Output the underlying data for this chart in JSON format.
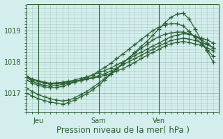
{
  "bg_color": "#d4eeed",
  "grid_color": "#9ec4b8",
  "line_color": "#2a6032",
  "marker": "+",
  "markersize": 4,
  "linewidth": 0.9,
  "xlabel": "Pression niveau de la mer( hPa )",
  "xlabel_fontsize": 8.5,
  "yticks": [
    1017,
    1018,
    1019
  ],
  "ylim": [
    1016.4,
    1019.85
  ],
  "xtick_labels": [
    "Jeu",
    "Sam",
    "Ven"
  ],
  "xtick_positions": [
    2,
    12,
    22
  ],
  "xlim": [
    0,
    32
  ],
  "vlines": [
    2,
    12,
    22
  ],
  "series": [
    [
      1017.55,
      1017.45,
      1017.4,
      1017.35,
      1017.32,
      1017.33,
      1017.35,
      1017.38,
      1017.42,
      1017.47,
      1017.52,
      1017.58,
      1017.65,
      1017.72,
      1017.8,
      1017.9,
      1018.0,
      1018.1,
      1018.2,
      1018.3,
      1018.4,
      1018.5,
      1018.6,
      1018.7,
      1018.8,
      1018.85,
      1018.9,
      1018.88,
      1018.82,
      1018.76,
      1018.7,
      1018.6
    ],
    [
      1017.52,
      1017.42,
      1017.37,
      1017.32,
      1017.29,
      1017.3,
      1017.32,
      1017.35,
      1017.38,
      1017.42,
      1017.46,
      1017.5,
      1017.56,
      1017.62,
      1017.7,
      1017.8,
      1017.9,
      1018.0,
      1018.1,
      1018.2,
      1018.3,
      1018.4,
      1018.5,
      1018.6,
      1018.68,
      1018.72,
      1018.75,
      1018.73,
      1018.68,
      1018.62,
      1018.55,
      1018.45
    ],
    [
      1017.5,
      1017.38,
      1017.3,
      1017.25,
      1017.22,
      1017.25,
      1017.28,
      1017.32,
      1017.35,
      1017.4,
      1017.44,
      1017.48,
      1017.52,
      1017.57,
      1017.63,
      1017.7,
      1017.78,
      1017.88,
      1017.98,
      1018.1,
      1018.2,
      1018.3,
      1018.4,
      1018.5,
      1018.58,
      1018.62,
      1018.65,
      1018.62,
      1018.57,
      1018.52,
      1018.45,
      1018.35
    ],
    [
      1017.15,
      1017.05,
      1016.95,
      1016.88,
      1016.82,
      1016.78,
      1016.75,
      1016.78,
      1016.85,
      1016.95,
      1017.05,
      1017.18,
      1017.32,
      1017.47,
      1017.62,
      1017.78,
      1017.95,
      1018.12,
      1018.28,
      1018.42,
      1018.55,
      1018.7,
      1018.8,
      1018.88,
      1018.92,
      1018.95,
      1018.95,
      1018.9,
      1018.82,
      1018.7,
      1018.6,
      1018.45
    ],
    [
      1017.0,
      1016.9,
      1016.82,
      1016.76,
      1016.72,
      1016.68,
      1016.65,
      1016.7,
      1016.78,
      1016.88,
      1016.98,
      1017.1,
      1017.25,
      1017.42,
      1017.6,
      1017.78,
      1017.95,
      1018.12,
      1018.3,
      1018.48,
      1018.65,
      1018.85,
      1019.05,
      1019.25,
      1019.42,
      1019.52,
      1019.55,
      1019.38,
      1019.05,
      1018.7,
      1018.35,
      1018.0
    ],
    [
      1017.42,
      1017.32,
      1017.25,
      1017.2,
      1017.17,
      1017.18,
      1017.22,
      1017.28,
      1017.35,
      1017.42,
      1017.5,
      1017.58,
      1017.7,
      1017.82,
      1017.95,
      1018.1,
      1018.25,
      1018.4,
      1018.55,
      1018.7,
      1018.85,
      1019.0,
      1019.1,
      1019.18,
      1019.22,
      1019.22,
      1019.15,
      1018.98,
      1018.78,
      1018.58,
      1018.38,
      1018.18
    ]
  ]
}
